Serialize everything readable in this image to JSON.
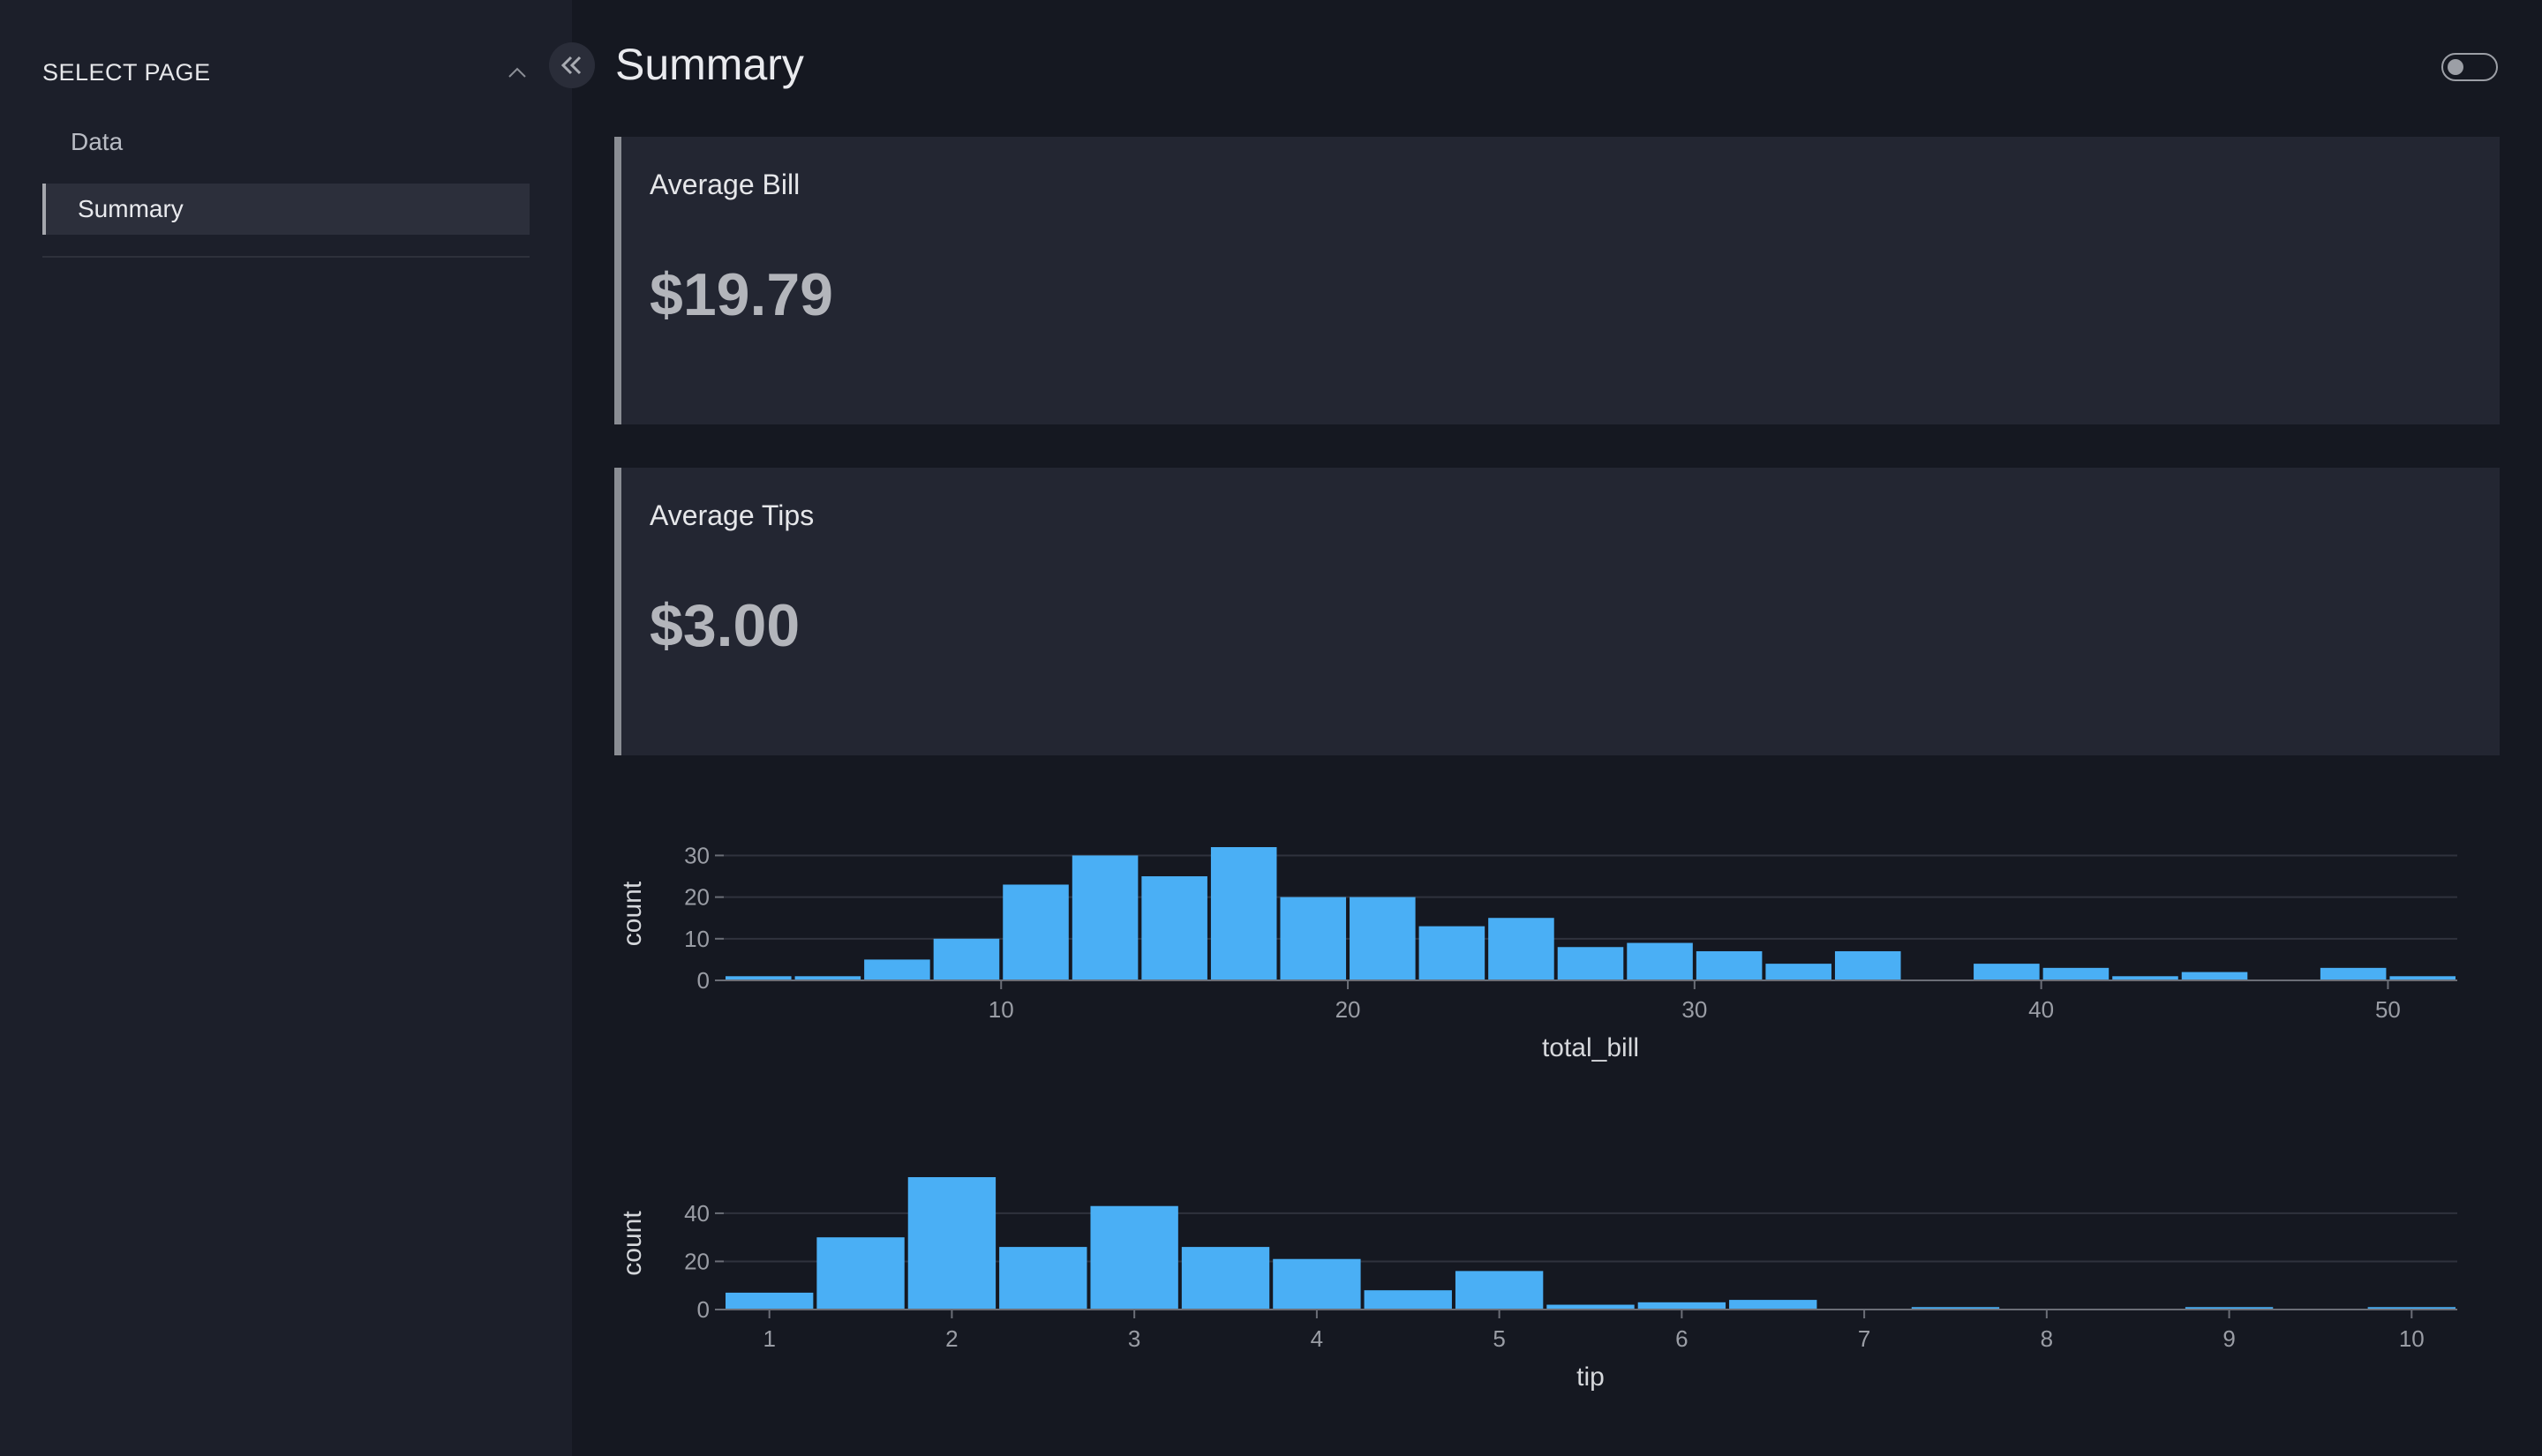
{
  "sidebar": {
    "header": "SELECT PAGE",
    "items": [
      {
        "label": "Data",
        "active": false
      },
      {
        "label": "Summary",
        "active": true
      }
    ]
  },
  "page": {
    "title": "Summary"
  },
  "cards": [
    {
      "label": "Average Bill",
      "value": "$19.79"
    },
    {
      "label": "Average Tips",
      "value": "$3.00"
    }
  ],
  "colors": {
    "bar": "#4aaff5",
    "background": "#151821",
    "sidebar": "#1c1f2a",
    "card": "#232632"
  },
  "icons": {
    "collapse": "double-chevron-left-icon",
    "select": "chevron-up-icon",
    "theme": "toggle-switch"
  },
  "chart_data": [
    {
      "type": "bar",
      "xlabel": "total_bill",
      "ylabel": "count",
      "xlim": [
        2,
        52
      ],
      "ylim": [
        0,
        32
      ],
      "xticks": [
        10,
        20,
        30,
        40,
        50
      ],
      "yticks": [
        0,
        10,
        20,
        30
      ],
      "bin_width": 2,
      "bins": [
        {
          "x0": 2,
          "count": 1
        },
        {
          "x0": 4,
          "count": 1
        },
        {
          "x0": 6,
          "count": 5
        },
        {
          "x0": 8,
          "count": 10
        },
        {
          "x0": 10,
          "count": 23
        },
        {
          "x0": 12,
          "count": 30
        },
        {
          "x0": 14,
          "count": 25
        },
        {
          "x0": 16,
          "count": 32
        },
        {
          "x0": 18,
          "count": 20
        },
        {
          "x0": 20,
          "count": 20
        },
        {
          "x0": 22,
          "count": 13
        },
        {
          "x0": 24,
          "count": 15
        },
        {
          "x0": 26,
          "count": 8
        },
        {
          "x0": 28,
          "count": 9
        },
        {
          "x0": 30,
          "count": 7
        },
        {
          "x0": 32,
          "count": 4
        },
        {
          "x0": 34,
          "count": 7
        },
        {
          "x0": 36,
          "count": 0
        },
        {
          "x0": 38,
          "count": 4
        },
        {
          "x0": 40,
          "count": 3
        },
        {
          "x0": 42,
          "count": 1
        },
        {
          "x0": 44,
          "count": 2
        },
        {
          "x0": 46,
          "count": 0
        },
        {
          "x0": 48,
          "count": 3
        },
        {
          "x0": 50,
          "count": 1
        }
      ]
    },
    {
      "type": "bar",
      "xlabel": "tip",
      "ylabel": "count",
      "xlim": [
        0.75,
        10.25
      ],
      "ylim": [
        0,
        55
      ],
      "xticks": [
        1,
        2,
        3,
        4,
        5,
        6,
        7,
        8,
        9,
        10
      ],
      "yticks": [
        0,
        20,
        40
      ],
      "bin_width": 0.5,
      "bins": [
        {
          "x0": 0.75,
          "count": 7
        },
        {
          "x0": 1.25,
          "count": 30
        },
        {
          "x0": 1.75,
          "count": 55
        },
        {
          "x0": 2.25,
          "count": 26
        },
        {
          "x0": 2.75,
          "count": 43
        },
        {
          "x0": 3.25,
          "count": 26
        },
        {
          "x0": 3.75,
          "count": 21
        },
        {
          "x0": 4.25,
          "count": 8
        },
        {
          "x0": 4.75,
          "count": 16
        },
        {
          "x0": 5.25,
          "count": 2
        },
        {
          "x0": 5.75,
          "count": 3
        },
        {
          "x0": 6.25,
          "count": 4
        },
        {
          "x0": 6.75,
          "count": 0
        },
        {
          "x0": 7.25,
          "count": 1
        },
        {
          "x0": 7.75,
          "count": 0
        },
        {
          "x0": 8.25,
          "count": 0
        },
        {
          "x0": 8.75,
          "count": 1
        },
        {
          "x0": 9.25,
          "count": 0
        },
        {
          "x0": 9.75,
          "count": 1
        }
      ]
    }
  ]
}
